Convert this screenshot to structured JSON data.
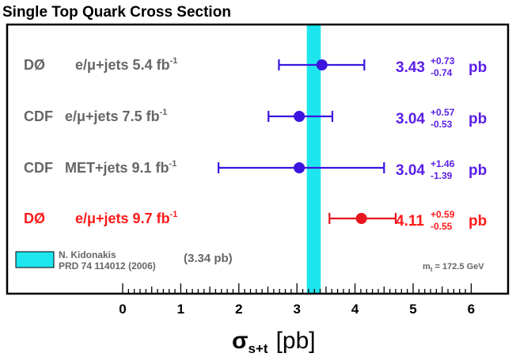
{
  "chart_data": {
    "type": "errorbar",
    "title": "Single Top Quark Cross Section",
    "xlabel_main": "σ",
    "xlabel_sub": "s+t",
    "xlabel_unit": "[pb]",
    "xlim": [
      -1.4,
      6.9
    ],
    "xticks": [
      "0",
      "1",
      "2",
      "3",
      "4",
      "5",
      "6"
    ],
    "theory": {
      "center": 3.34,
      "low": 3.17,
      "high": 3.41,
      "color": "#1ee6ee",
      "author": "N. Kidonakis",
      "reference": "PRD 74 114012 (2006)",
      "value_text": "(3.34 pb)"
    },
    "mass_note_pre": "m",
    "mass_note_sub": "t",
    "mass_note_post": " = 172.5 GeV",
    "measurements": [
      {
        "experiment": "DØ",
        "channel": "e/μ+jets 5.4 fb",
        "sup": "-1",
        "value": 3.43,
        "err_plus": 0.73,
        "err_minus": 0.74,
        "value_text": "3.43",
        "plus_text": "+0.73",
        "minus_text": "-0.74",
        "unit": "pb",
        "label_color": "#666666",
        "point_color": "#3c14e0",
        "value_color": "#5a1ee8"
      },
      {
        "experiment": "CDF",
        "channel": "e/μ+jets 7.5 fb",
        "sup": "-1",
        "value": 3.04,
        "err_plus": 0.57,
        "err_minus": 0.53,
        "value_text": "3.04",
        "plus_text": "+0.57",
        "minus_text": "-0.53",
        "unit": "pb",
        "label_color": "#666666",
        "point_color": "#3c14e0",
        "value_color": "#5a1ee8"
      },
      {
        "experiment": "CDF",
        "channel": "MET+jets 9.1 fb",
        "sup": "-1",
        "value": 3.04,
        "err_plus": 1.46,
        "err_minus": 1.39,
        "value_text": "3.04",
        "plus_text": "+1.46",
        "minus_text": "-1.39",
        "unit": "pb",
        "label_color": "#666666",
        "point_color": "#3c14e0",
        "value_color": "#5a1ee8"
      },
      {
        "experiment": "DØ",
        "channel": "e/μ+jets 9.7 fb",
        "sup": "-1",
        "value": 4.11,
        "err_plus": 0.59,
        "err_minus": 0.55,
        "value_text": "4.11",
        "plus_text": "+0.59",
        "minus_text": "-0.55",
        "unit": "pb",
        "label_color": "#ff1a1a",
        "point_color": "#e8141e",
        "value_color": "#ff1a1a"
      }
    ]
  }
}
